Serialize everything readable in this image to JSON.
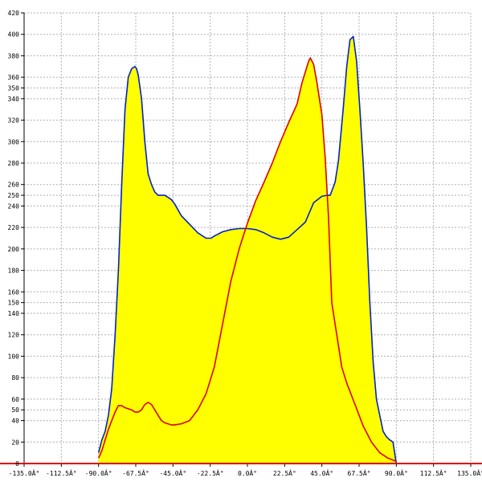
{
  "chart_data": {
    "type": "area",
    "title": "",
    "xlabel": "",
    "ylabel": "",
    "xlim": [
      -135,
      135
    ],
    "ylim": [
      0,
      420
    ],
    "grid": true,
    "fill_color": "#ffff00",
    "x_ticks": [
      -135,
      -112.5,
      -90,
      -67.5,
      -45,
      -22.5,
      0,
      22.5,
      45,
      67.5,
      90,
      112.5,
      135
    ],
    "x_tick_labels": [
      "-135.0Â°",
      "-112.5Â°",
      "-90.0Â°",
      "-67.5Â°",
      "-45.0Â°",
      "-22.5Â°",
      "0.0Â°",
      "22.5Â°",
      "45.0Â°",
      "67.5Â°",
      "90.0Â°",
      "112.5Â°",
      "135.0Â°"
    ],
    "y_ticks": [
      0,
      20,
      40,
      50,
      60,
      80,
      100,
      120,
      140,
      150,
      160,
      180,
      200,
      220,
      240,
      250,
      260,
      280,
      300,
      320,
      340,
      350,
      360,
      380,
      400,
      420
    ],
    "y_tick_labels": [
      "0",
      "20",
      "40",
      "50",
      "60",
      "80",
      "100",
      "120",
      "140",
      "150",
      "160",
      "180",
      "200",
      "220",
      "240",
      "250",
      "260",
      "280",
      "300",
      "320",
      "340",
      "350",
      "360",
      "380",
      "400",
      "420"
    ],
    "series": [
      {
        "color": "#0022cc",
        "x": [
          -90,
          -88,
          -86,
          -84,
          -82,
          -80,
          -78,
          -76,
          -74,
          -72,
          -70,
          -68,
          -67,
          -66,
          -64,
          -62,
          -60,
          -58,
          -56,
          -54,
          -52,
          -50,
          -48,
          -46,
          -44,
          -40,
          -35,
          -30,
          -25,
          -22,
          -20,
          -15,
          -10,
          -5,
          0,
          5,
          10,
          15,
          20,
          25,
          30,
          35,
          40,
          45,
          48,
          50,
          53,
          55,
          58,
          60,
          62,
          64,
          66,
          68,
          70,
          72,
          74,
          76,
          78,
          80,
          82,
          84,
          86,
          88,
          90
        ],
        "y": [
          10,
          22,
          30,
          45,
          70,
          120,
          180,
          260,
          330,
          360,
          368,
          370,
          368,
          362,
          340,
          300,
          270,
          260,
          253,
          250,
          250,
          250,
          248,
          246,
          242,
          231,
          223,
          215,
          210,
          210,
          212,
          216,
          218,
          219,
          219,
          218,
          215,
          211,
          209,
          211,
          218,
          225,
          243,
          249,
          250,
          250,
          262,
          282,
          332,
          370,
          395,
          398,
          375,
          330,
          280,
          220,
          150,
          95,
          60,
          45,
          30,
          25,
          22,
          20,
          0
        ]
      },
      {
        "color": "#dd0000",
        "x": [
          -90,
          -88,
          -86,
          -84,
          -82,
          -80,
          -78,
          -76,
          -74,
          -72,
          -70,
          -68,
          -66,
          -64,
          -62,
          -60,
          -58,
          -56,
          -54,
          -52,
          -50,
          -48,
          -46,
          -44,
          -40,
          -35,
          -30,
          -25,
          -20,
          -15,
          -10,
          -5,
          0,
          5,
          10,
          15,
          20,
          25,
          30,
          33,
          35,
          37,
          38,
          40,
          42,
          45,
          47,
          49,
          51,
          53,
          55,
          57,
          60,
          65,
          70,
          75,
          80,
          85,
          90
        ],
        "y": [
          5,
          12,
          22,
          32,
          40,
          48,
          54,
          54,
          52,
          51,
          50,
          48,
          48,
          50,
          55,
          57,
          55,
          50,
          45,
          40,
          38,
          37,
          36,
          36,
          37,
          40,
          50,
          65,
          90,
          130,
          170,
          200,
          224,
          245,
          262,
          280,
          300,
          318,
          335,
          355,
          365,
          375,
          378,
          372,
          355,
          325,
          285,
          230,
          150,
          130,
          110,
          90,
          75,
          55,
          35,
          20,
          10,
          5,
          2
        ]
      }
    ]
  }
}
